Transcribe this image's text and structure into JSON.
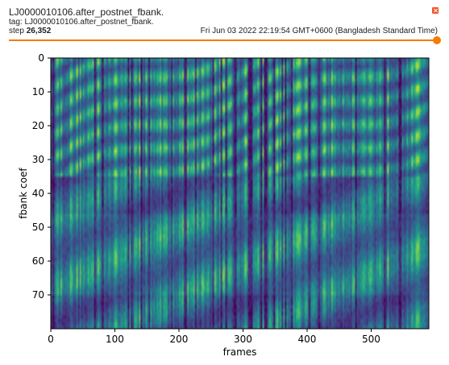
{
  "card": {
    "title": "LJ0000010106.after_postnet_fbank.",
    "tag_text": "tag: LJ0000010106.after_postnet_fbank.",
    "step_label": "step",
    "step_value": "26,352",
    "timestamp": "Fri Jun 03 2022 22:19:54 GMT+0600 (Bangladesh Standard Time)",
    "close_icon": "close-icon",
    "slider_position": 1.0,
    "accent_color": "#f57c00"
  },
  "chart_data": {
    "type": "heatmap",
    "title": "",
    "xlabel": "frames",
    "ylabel": "fbank coef",
    "xlim": [
      0,
      590
    ],
    "ylim": [
      80,
      0
    ],
    "y_inverted": true,
    "xticks": [
      0,
      100,
      200,
      300,
      400,
      500
    ],
    "yticks": [
      0,
      10,
      20,
      30,
      40,
      50,
      60,
      70
    ],
    "colormap": "viridis",
    "grid": false
  }
}
